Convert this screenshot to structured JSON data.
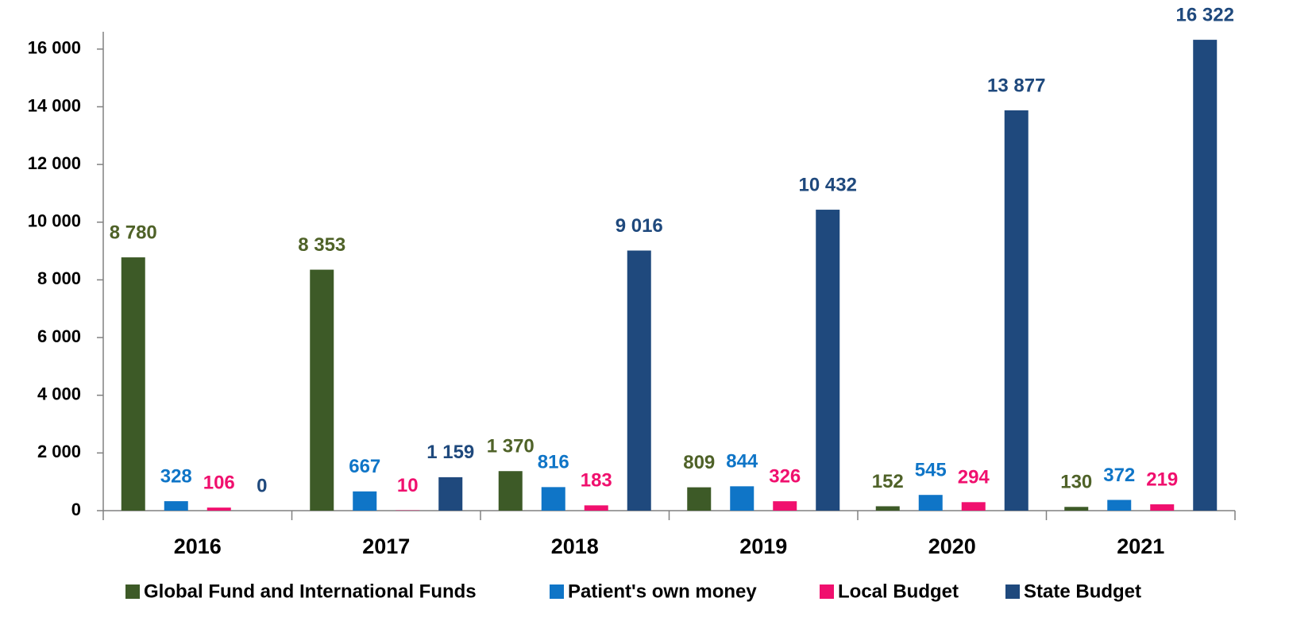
{
  "chart_data": {
    "type": "bar",
    "categories": [
      "2016",
      "2017",
      "2018",
      "2019",
      "2020",
      "2021"
    ],
    "series": [
      {
        "name": "Global Fund and International Funds",
        "color": "#3d5a27",
        "label_color": "#4f6228",
        "values": [
          8780,
          8353,
          1370,
          809,
          152,
          130
        ],
        "value_labels": [
          "8 780",
          "8 353",
          "1 370",
          "809",
          "152",
          "130"
        ]
      },
      {
        "name": "Patient's own money",
        "color": "#0f75c7",
        "label_color": "#0f75c7",
        "values": [
          328,
          667,
          816,
          844,
          545,
          372
        ],
        "value_labels": [
          "328",
          "667",
          "816",
          "844",
          "545",
          "372"
        ]
      },
      {
        "name": "Local Budget",
        "color": "#f0106e",
        "label_color": "#f0106e",
        "values": [
          106,
          10,
          183,
          326,
          294,
          219
        ],
        "value_labels": [
          "106",
          "10",
          "183",
          "326",
          "294",
          "219"
        ]
      },
      {
        "name": "State Budget",
        "color": "#1f497d",
        "label_color": "#1f497d",
        "values": [
          0,
          1159,
          9016,
          10432,
          13877,
          16322
        ],
        "value_labels": [
          "0",
          "1 159",
          "9 016",
          "10 432",
          "13 877",
          "16 322"
        ]
      }
    ],
    "ylim": [
      0,
      16600
    ],
    "yticks": [
      0,
      {
        "value": 2000,
        "label": "2 000"
      },
      {
        "value": 4000,
        "label": "4 000"
      },
      {
        "value": 6000,
        "label": "6 000"
      },
      {
        "value": 8000,
        "label": "8 000"
      },
      {
        "value": 10000,
        "label": "10 000"
      },
      {
        "value": 12000,
        "label": "12 000"
      },
      {
        "value": 14000,
        "label": "14 000"
      },
      {
        "value": 16000,
        "label": "16 000"
      }
    ],
    "legend": "bottom"
  }
}
